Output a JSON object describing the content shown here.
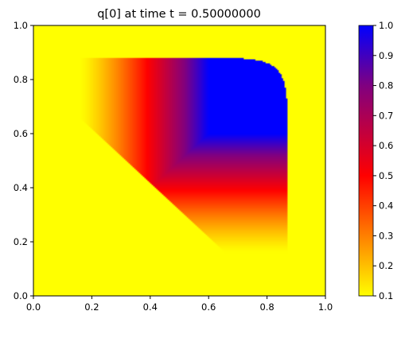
{
  "chart_data": {
    "type": "heatmap",
    "title": "q[0] at time t =     0.50000000",
    "xlim": [
      0.0,
      1.0
    ],
    "ylim": [
      0.0,
      1.0
    ],
    "x_ticks": [
      "0.0",
      "0.2",
      "0.4",
      "0.6",
      "0.8",
      "1.0"
    ],
    "y_ticks": [
      "0.0",
      "0.2",
      "0.4",
      "0.6",
      "0.8",
      "1.0"
    ],
    "xlabel": "",
    "ylabel": "",
    "grid": false,
    "colorbar": {
      "range": [
        0.1,
        1.0
      ],
      "ticks": [
        "0.1",
        "0.2",
        "0.3",
        "0.4",
        "0.5",
        "0.6",
        "0.7",
        "0.8",
        "0.9",
        "1.0"
      ],
      "colors": {
        "0.1": "#ffff00",
        "0.5": "#ff0000",
        "0.8": "#800080",
        "1.0": "#0000ff"
      }
    },
    "field": {
      "background_value": 0.1,
      "peak_value": 1.0,
      "peak_region": {
        "x": [
          0.6,
          0.87
        ],
        "y": [
          0.6,
          0.88
        ]
      },
      "front_outer_x": 0.87,
      "front_outer_y": 0.88,
      "tail_x": 0.16,
      "tail_y": 0.16
    }
  }
}
